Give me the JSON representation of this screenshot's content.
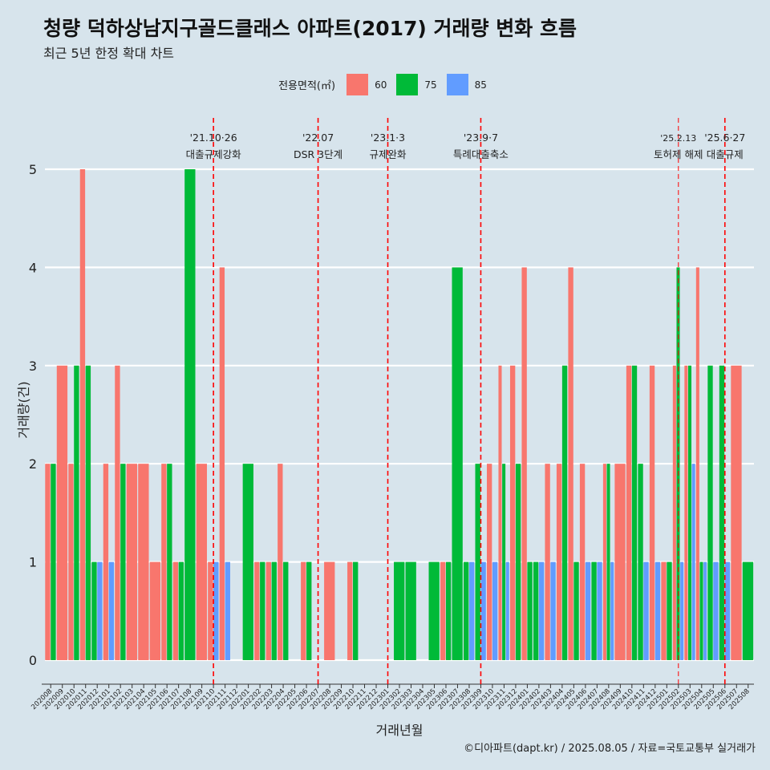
{
  "chart_data": {
    "type": "bar",
    "title": "청량 덕하상남지구골드클래스 아파트(2017) 거래량 변화 흐름",
    "subtitle": "최근 5년 한정 확대 차트",
    "xlabel": "거래년월",
    "ylabel": "거래량(건)",
    "caption": "©디아파트(dapt.kr) / 2025.08.05 / 자료=국토교통부 실거래가",
    "legend_title": "전용면적(㎡)",
    "legend_position": "top",
    "ylim": [
      0,
      5
    ],
    "yticks": [
      "0",
      "1",
      "2",
      "3",
      "4",
      "5"
    ],
    "grid": true,
    "categories": [
      "202008",
      "202009",
      "202010",
      "202011",
      "202012",
      "202101",
      "202102",
      "202103",
      "202104",
      "202105",
      "202106",
      "202107",
      "202108",
      "202109",
      "202110",
      "202111",
      "202112",
      "202201",
      "202202",
      "202203",
      "202204",
      "202205",
      "202206",
      "202207",
      "202208",
      "202209",
      "202210",
      "202211",
      "202212",
      "202301",
      "202302",
      "202303",
      "202304",
      "202305",
      "202306",
      "202307",
      "202308",
      "202309",
      "202310",
      "202311",
      "202312",
      "202401",
      "202402",
      "202403",
      "202404",
      "202405",
      "202406",
      "202407",
      "202408",
      "202409",
      "202410",
      "202411",
      "202412",
      "202501",
      "202502",
      "202503",
      "202504",
      "202505",
      "202506",
      "202507",
      "202508"
    ],
    "series": [
      {
        "name": "60",
        "color": "#f8766d",
        "values": [
          2,
          3,
          2,
          5,
          0,
          2,
          3,
          2,
          2,
          1,
          2,
          1,
          0,
          2,
          1,
          4,
          0,
          0,
          1,
          1,
          2,
          0,
          1,
          0,
          1,
          0,
          1,
          0,
          0,
          0,
          0,
          0,
          0,
          0,
          1,
          0,
          0,
          0,
          2,
          3,
          3,
          4,
          0,
          2,
          2,
          4,
          2,
          0,
          2,
          2,
          3,
          0,
          3,
          1,
          3,
          3,
          4,
          0,
          0,
          3,
          0
        ]
      },
      {
        "name": "75",
        "color": "#00ba38",
        "values": [
          2,
          0,
          3,
          3,
          1,
          0,
          2,
          0,
          0,
          0,
          2,
          1,
          5,
          0,
          0,
          0,
          0,
          2,
          1,
          1,
          1,
          0,
          1,
          0,
          0,
          0,
          1,
          0,
          0,
          0,
          1,
          1,
          0,
          1,
          1,
          4,
          1,
          2,
          0,
          2,
          2,
          1,
          1,
          0,
          3,
          1,
          0,
          1,
          2,
          0,
          3,
          2,
          0,
          1,
          4,
          3,
          1,
          3,
          3,
          0,
          1
        ]
      },
      {
        "name": "85",
        "color": "#619cff",
        "values": [
          0,
          0,
          0,
          0,
          1,
          1,
          0,
          0,
          0,
          0,
          0,
          0,
          0,
          0,
          1,
          1,
          0,
          0,
          0,
          0,
          0,
          0,
          0,
          0,
          0,
          0,
          0,
          0,
          0,
          0,
          0,
          0,
          0,
          0,
          0,
          0,
          1,
          1,
          1,
          1,
          0,
          0,
          1,
          1,
          0,
          0,
          1,
          1,
          1,
          0,
          0,
          1,
          1,
          0,
          1,
          2,
          1,
          1,
          1,
          0,
          0
        ]
      }
    ],
    "events": [
      {
        "date": "202110",
        "line1": "'21.10·26",
        "line2": "대출규제강화"
      },
      {
        "date": "202207",
        "line1": "'22.07",
        "line2": "DSR 3단계"
      },
      {
        "date": "202301",
        "line1": "'23.1·3",
        "line2": "규제완화"
      },
      {
        "date": "202309",
        "line1": "'23.9·7",
        "line2": "특례대출축소"
      },
      {
        "date": "202502",
        "line1": "'25.2.13",
        "line2": "토허제 해제"
      },
      {
        "date": "202506",
        "line1": "'25.6·27",
        "line2": "대출규제"
      }
    ]
  }
}
